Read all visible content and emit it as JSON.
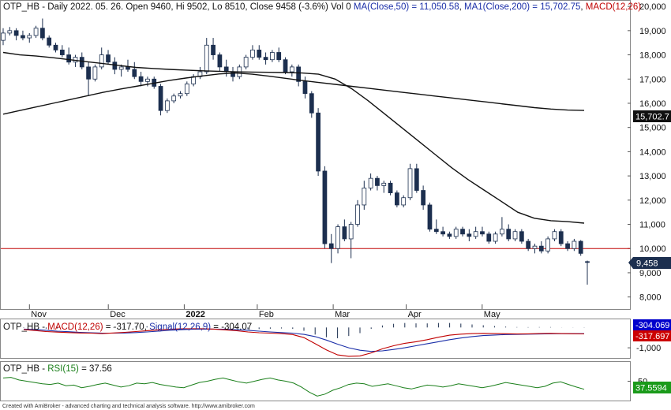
{
  "price_header": {
    "symbol": "OTP_HB",
    "period": "Daily",
    "date": "2022. 05. 26.",
    "open_label": "Open",
    "open": "9460",
    "high_label": "Hi",
    "high": "9502",
    "low_label": "Lo",
    "low": "8510",
    "close_label": "Close",
    "close": "9458",
    "change": "(-3.6%)",
    "vol_label": "Vol",
    "vol": "0",
    "ma50_label": "MA(Close,50)",
    "ma50_value": "11,050.58",
    "ma200_label": "MA1(Close,200)",
    "ma200_value": "15,702.75",
    "macd_label": "MACD(12,26)"
  },
  "macd_header": {
    "symbol": "OTP_HB",
    "macd_label": "MACD(12,26)",
    "macd_value": "-317.70",
    "signal_label": "Signal(12,26,9)",
    "signal_value": "-304.07"
  },
  "rsi_header": {
    "symbol": "OTP_HB",
    "rsi_label": "RSI(15)",
    "rsi_value": "37.56"
  },
  "footer": {
    "text": "Created with AmiBroker - advanced charting and technical analysis software. http://www.amibroker.com"
  },
  "badges": {
    "ma200": "15,702.7",
    "close": "9,458",
    "signal": "-304.069",
    "macd": "-317.697",
    "rsi": "37.5594"
  },
  "colors": {
    "up_candle": "#ffffff",
    "down_candle": "#1c2f4f",
    "ma": "#111111",
    "hline": "#c00000",
    "macd_line": "#c00000",
    "signal_line": "#1a2ea8",
    "rsi_line": "#1a7f1a",
    "badge_dark": "#1c2f4f",
    "badge_blue": "#0000cc",
    "badge_red": "#cc0000",
    "badge_green": "#1a9a1a"
  },
  "chart_data": [
    {
      "type": "candlestick",
      "title": "OTP_HB - Daily 2022. 05. 26.",
      "x_tick_labels": [
        "Nov",
        "Dec",
        "2022",
        "Feb",
        "Mar",
        "Apr",
        "May"
      ],
      "y_tick_labels": [
        "8,000",
        "9,000",
        "10,000",
        "11,000",
        "12,000",
        "13,000",
        "14,000",
        "15,000",
        "16,000",
        "17,000",
        "18,000",
        "19,000",
        "20,000"
      ],
      "ylim": [
        7500,
        20200
      ],
      "horizontal_line": 10000,
      "series": [
        {
          "name": "MA(Close,50)",
          "values": [
            18100,
            18000,
            17950,
            17880,
            17800,
            17720,
            17640,
            17560,
            17480,
            17440,
            17400,
            17370,
            17340,
            17320,
            17300,
            17290,
            17280,
            17270,
            17250,
            17200,
            17000,
            16600,
            16100,
            15550,
            15000,
            14450,
            13900,
            13350,
            12850,
            12400,
            11950,
            11500,
            11250,
            11150,
            11110,
            11050
          ]
        },
        {
          "name": "MA1(Close,200)",
          "values": [
            15550,
            15700,
            15850,
            16000,
            16150,
            16300,
            16450,
            16580,
            16700,
            16820,
            16940,
            17040,
            17130,
            17210,
            17250,
            17200,
            17120,
            17030,
            16940,
            16860,
            16780,
            16700,
            16620,
            16540,
            16460,
            16380,
            16300,
            16220,
            16140,
            16060,
            15980,
            15900,
            15820,
            15760,
            15720,
            15702.75
          ]
        }
      ],
      "candles": [
        {
          "o": 18600,
          "h": 19100,
          "l": 18400,
          "c": 18900
        },
        {
          "o": 18900,
          "h": 19150,
          "l": 18800,
          "c": 19000
        },
        {
          "o": 19000,
          "h": 19100,
          "l": 18600,
          "c": 18800
        },
        {
          "o": 18800,
          "h": 19000,
          "l": 18600,
          "c": 18700
        },
        {
          "o": 18700,
          "h": 18900,
          "l": 18500,
          "c": 18800
        },
        {
          "o": 18800,
          "h": 19200,
          "l": 18700,
          "c": 19100
        },
        {
          "o": 19100,
          "h": 19500,
          "l": 18600,
          "c": 18700
        },
        {
          "o": 18700,
          "h": 18800,
          "l": 18300,
          "c": 18400
        },
        {
          "o": 18400,
          "h": 18500,
          "l": 18100,
          "c": 18200
        },
        {
          "o": 18200,
          "h": 18400,
          "l": 17900,
          "c": 18000
        },
        {
          "o": 18000,
          "h": 18300,
          "l": 17600,
          "c": 17700
        },
        {
          "o": 17700,
          "h": 18000,
          "l": 17500,
          "c": 17900
        },
        {
          "o": 17900,
          "h": 18100,
          "l": 17400,
          "c": 17500
        },
        {
          "o": 17500,
          "h": 17700,
          "l": 16300,
          "c": 17000
        },
        {
          "o": 17000,
          "h": 17600,
          "l": 16900,
          "c": 17500
        },
        {
          "o": 17500,
          "h": 18300,
          "l": 17400,
          "c": 18000
        },
        {
          "o": 18000,
          "h": 18200,
          "l": 17600,
          "c": 17700
        },
        {
          "o": 17700,
          "h": 17900,
          "l": 17200,
          "c": 17400
        },
        {
          "o": 17400,
          "h": 17600,
          "l": 17100,
          "c": 17500
        },
        {
          "o": 17500,
          "h": 17800,
          "l": 17300,
          "c": 17400
        },
        {
          "o": 17400,
          "h": 17700,
          "l": 17000,
          "c": 17100
        },
        {
          "o": 17100,
          "h": 17300,
          "l": 16700,
          "c": 16900
        },
        {
          "o": 16900,
          "h": 17100,
          "l": 16700,
          "c": 17000
        },
        {
          "o": 17000,
          "h": 17100,
          "l": 16600,
          "c": 16700
        },
        {
          "o": 16700,
          "h": 16800,
          "l": 15500,
          "c": 15700
        },
        {
          "o": 15700,
          "h": 16200,
          "l": 15600,
          "c": 16100
        },
        {
          "o": 16100,
          "h": 16400,
          "l": 16000,
          "c": 16300
        },
        {
          "o": 16300,
          "h": 16500,
          "l": 16200,
          "c": 16400
        },
        {
          "o": 16400,
          "h": 16900,
          "l": 16300,
          "c": 16800
        },
        {
          "o": 16800,
          "h": 17200,
          "l": 16700,
          "c": 17100
        },
        {
          "o": 17100,
          "h": 17500,
          "l": 17000,
          "c": 17300
        },
        {
          "o": 17300,
          "h": 18700,
          "l": 17200,
          "c": 18400
        },
        {
          "o": 18400,
          "h": 18700,
          "l": 17800,
          "c": 18000
        },
        {
          "o": 18000,
          "h": 18100,
          "l": 17300,
          "c": 17500
        },
        {
          "o": 17500,
          "h": 17800,
          "l": 17100,
          "c": 17300
        },
        {
          "o": 17300,
          "h": 17500,
          "l": 16900,
          "c": 17100
        },
        {
          "o": 17100,
          "h": 17600,
          "l": 17000,
          "c": 17500
        },
        {
          "o": 17500,
          "h": 18000,
          "l": 17400,
          "c": 17900
        },
        {
          "o": 17900,
          "h": 18400,
          "l": 17800,
          "c": 18200
        },
        {
          "o": 18200,
          "h": 18400,
          "l": 17800,
          "c": 17900
        },
        {
          "o": 17900,
          "h": 18100,
          "l": 17600,
          "c": 17800
        },
        {
          "o": 17800,
          "h": 18200,
          "l": 17700,
          "c": 18100
        },
        {
          "o": 18100,
          "h": 18300,
          "l": 17700,
          "c": 17800
        },
        {
          "o": 17800,
          "h": 17900,
          "l": 17200,
          "c": 17300
        },
        {
          "o": 17300,
          "h": 17600,
          "l": 17100,
          "c": 17500
        },
        {
          "o": 17500,
          "h": 17600,
          "l": 16700,
          "c": 16900
        },
        {
          "o": 16900,
          "h": 17100,
          "l": 16200,
          "c": 16400
        },
        {
          "o": 16400,
          "h": 16500,
          "l": 15400,
          "c": 15600
        },
        {
          "o": 15600,
          "h": 15800,
          "l": 13000,
          "c": 13200
        },
        {
          "o": 13200,
          "h": 13400,
          "l": 10000,
          "c": 10200
        },
        {
          "o": 10200,
          "h": 10600,
          "l": 9400,
          "c": 10000
        },
        {
          "o": 10000,
          "h": 11000,
          "l": 9800,
          "c": 10900
        },
        {
          "o": 10900,
          "h": 11200,
          "l": 10300,
          "c": 10400
        },
        {
          "o": 10400,
          "h": 11100,
          "l": 9600,
          "c": 11000
        },
        {
          "o": 11000,
          "h": 12000,
          "l": 10900,
          "c": 11800
        },
        {
          "o": 11800,
          "h": 12800,
          "l": 11600,
          "c": 12500
        },
        {
          "o": 12500,
          "h": 13100,
          "l": 12400,
          "c": 12900
        },
        {
          "o": 12900,
          "h": 13000,
          "l": 12400,
          "c": 12600
        },
        {
          "o": 12600,
          "h": 12800,
          "l": 12300,
          "c": 12700
        },
        {
          "o": 12700,
          "h": 12800,
          "l": 12200,
          "c": 12300
        },
        {
          "o": 12300,
          "h": 12400,
          "l": 11700,
          "c": 11800
        },
        {
          "o": 11800,
          "h": 12200,
          "l": 11700,
          "c": 12100
        },
        {
          "o": 12100,
          "h": 13500,
          "l": 12000,
          "c": 13300
        },
        {
          "o": 13300,
          "h": 13500,
          "l": 12300,
          "c": 12400
        },
        {
          "o": 12400,
          "h": 12600,
          "l": 11600,
          "c": 11800
        },
        {
          "o": 11800,
          "h": 11900,
          "l": 10700,
          "c": 10800
        },
        {
          "o": 10800,
          "h": 11200,
          "l": 10600,
          "c": 10700
        },
        {
          "o": 10700,
          "h": 10900,
          "l": 10500,
          "c": 10600
        },
        {
          "o": 10600,
          "h": 10700,
          "l": 10400,
          "c": 10500
        },
        {
          "o": 10500,
          "h": 10900,
          "l": 10400,
          "c": 10800
        },
        {
          "o": 10800,
          "h": 10900,
          "l": 10500,
          "c": 10600
        },
        {
          "o": 10600,
          "h": 10800,
          "l": 10300,
          "c": 10500
        },
        {
          "o": 10500,
          "h": 10900,
          "l": 10400,
          "c": 10700
        },
        {
          "o": 10700,
          "h": 10900,
          "l": 10500,
          "c": 10600
        },
        {
          "o": 10600,
          "h": 10700,
          "l": 10200,
          "c": 10300
        },
        {
          "o": 10300,
          "h": 10700,
          "l": 10200,
          "c": 10600
        },
        {
          "o": 10600,
          "h": 11300,
          "l": 10500,
          "c": 10800
        },
        {
          "o": 10800,
          "h": 11000,
          "l": 10300,
          "c": 10400
        },
        {
          "o": 10400,
          "h": 10800,
          "l": 10300,
          "c": 10700
        },
        {
          "o": 10700,
          "h": 10800,
          "l": 10200,
          "c": 10300
        },
        {
          "o": 10300,
          "h": 10400,
          "l": 9900,
          "c": 10000
        },
        {
          "o": 10000,
          "h": 10200,
          "l": 9800,
          "c": 10100
        },
        {
          "o": 10100,
          "h": 10300,
          "l": 9800,
          "c": 9900
        },
        {
          "o": 9900,
          "h": 10500,
          "l": 9800,
          "c": 10400
        },
        {
          "o": 10400,
          "h": 10800,
          "l": 10300,
          "c": 10700
        },
        {
          "o": 10700,
          "h": 10800,
          "l": 10100,
          "c": 10200
        },
        {
          "o": 10200,
          "h": 10300,
          "l": 9900,
          "c": 10000
        },
        {
          "o": 10000,
          "h": 10400,
          "l": 9900,
          "c": 10300
        },
        {
          "o": 10300,
          "h": 10350,
          "l": 9700,
          "c": 9800
        },
        {
          "o": 9460,
          "h": 9502,
          "l": 8510,
          "c": 9458
        }
      ]
    },
    {
      "type": "line",
      "title": "MACD(12,26)",
      "y_tick_labels": [
        "-1,000"
      ],
      "ylim": [
        -1500,
        400
      ],
      "series": [
        {
          "name": "MACD(12,26)",
          "values": [
            -100,
            -150,
            -200,
            -230,
            -250,
            -270,
            -280,
            -300,
            -270,
            -240,
            -200,
            -160,
            -120,
            -90,
            -70,
            -60,
            -60,
            -80,
            -120,
            -160,
            -220,
            -260,
            -280,
            -300,
            -350,
            -500,
            -800,
            -1100,
            -1350,
            -1420,
            -1400,
            -1250,
            -1050,
            -900,
            -780,
            -700,
            -600,
            -480,
            -380,
            -330,
            -300,
            -290,
            -300,
            -310,
            -320,
            -315,
            -300,
            -290,
            -300,
            -310,
            -317.7
          ]
        },
        {
          "name": "Signal(12,26,9)",
          "values": [
            -80,
            -100,
            -140,
            -180,
            -210,
            -240,
            -260,
            -280,
            -280,
            -270,
            -250,
            -220,
            -180,
            -140,
            -110,
            -90,
            -80,
            -80,
            -90,
            -110,
            -140,
            -180,
            -220,
            -250,
            -280,
            -340,
            -450,
            -620,
            -820,
            -1000,
            -1120,
            -1180,
            -1150,
            -1080,
            -1000,
            -900,
            -800,
            -700,
            -600,
            -520,
            -450,
            -400,
            -370,
            -350,
            -340,
            -330,
            -320,
            -310,
            -305,
            -304,
            -304.07
          ]
        }
      ]
    },
    {
      "type": "line",
      "title": "RSI(15)",
      "y_tick_labels": [
        "50"
      ],
      "ylim": [
        20,
        80
      ],
      "series": [
        {
          "name": "RSI(15)",
          "values": [
            55,
            56,
            52,
            50,
            48,
            46,
            45,
            47,
            43,
            44,
            40,
            42,
            45,
            47,
            44,
            41,
            43,
            47,
            46,
            48,
            45,
            43,
            41,
            40,
            44,
            48,
            50,
            53,
            55,
            52,
            49,
            47,
            50,
            53,
            55,
            52,
            50,
            47,
            41,
            33,
            27,
            30,
            36,
            40,
            45,
            47,
            46,
            42,
            44,
            46,
            43,
            40,
            38,
            41,
            44,
            43,
            41,
            43,
            46,
            44,
            42,
            40,
            42,
            45,
            48,
            46,
            44,
            42,
            40,
            42,
            47,
            49,
            45,
            41,
            37.56
          ]
        }
      ]
    }
  ]
}
